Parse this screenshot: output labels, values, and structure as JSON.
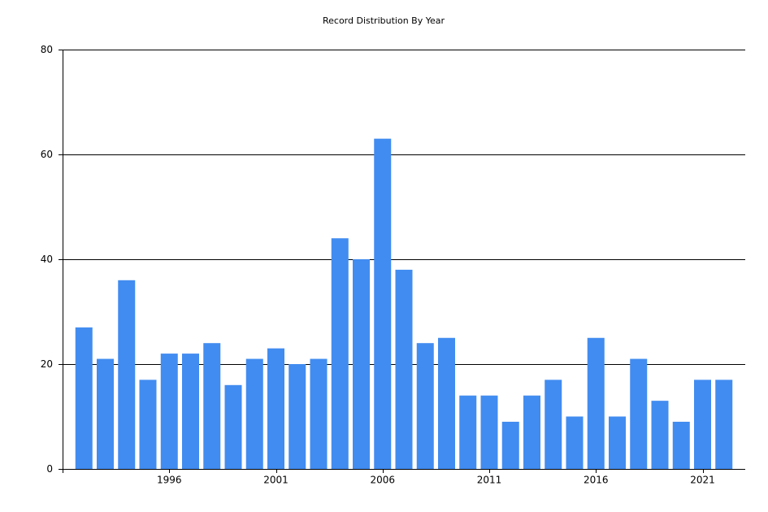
{
  "chart_data": {
    "type": "bar",
    "title": "Record Distribution By Year",
    "categories": [
      null,
      null,
      null,
      null,
      "1996",
      null,
      null,
      null,
      null,
      "2001",
      null,
      null,
      null,
      null,
      "2006",
      null,
      null,
      null,
      null,
      "2011",
      null,
      null,
      null,
      null,
      "2016",
      null,
      null,
      null,
      null,
      "2021",
      null
    ],
    "values": [
      27,
      21,
      36,
      17,
      22,
      22,
      24,
      16,
      21,
      23,
      20,
      21,
      44,
      40,
      63,
      38,
      24,
      25,
      14,
      14,
      9,
      14,
      17,
      10,
      25,
      10,
      21,
      13,
      9,
      17,
      17
    ],
    "color": "#418cf0",
    "ylim": [
      0,
      80
    ],
    "yticks": [
      0,
      20,
      40,
      60,
      80
    ],
    "grid": true
  }
}
